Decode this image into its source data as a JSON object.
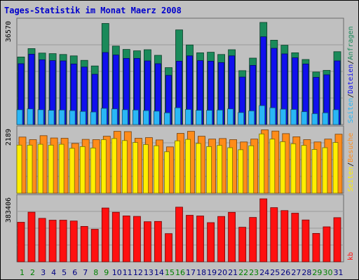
{
  "chart_data": {
    "type": "bar",
    "title": "Tages-Statistik im Monat Maerz 2008",
    "categories": [
      "1",
      "2",
      "3",
      "4",
      "5",
      "6",
      "7",
      "8",
      "9",
      "10",
      "11",
      "12",
      "13",
      "14",
      "15",
      "16",
      "17",
      "18",
      "19",
      "20",
      "21",
      "22",
      "23",
      "24",
      "25",
      "26",
      "27",
      "28",
      "29",
      "30",
      "31"
    ],
    "weekend_days": [
      "1",
      "2",
      "8",
      "9",
      "15",
      "16",
      "22",
      "23",
      "29",
      "30"
    ],
    "grid": true,
    "panels": [
      {
        "name": "requests",
        "max_label": "36570",
        "ylim": [
          0,
          36570
        ],
        "series": [
          {
            "name": "Anfragen",
            "color": "#1a8a5a",
            "values": [
              24200,
              27200,
              25600,
              25400,
              25100,
              24600,
              23000,
              21000,
              36200,
              28100,
              26900,
              26400,
              26800,
              24800,
              20400,
              33900,
              28500,
              25700,
              25900,
              25100,
              26800,
              19300,
              23800,
              36570,
              30200,
              28400,
              25700,
              23300,
              18800,
              19400,
              26100
            ]
          },
          {
            "name": "Dateien",
            "color": "#1010ee",
            "values": [
              21800,
              25200,
              23200,
              22900,
              22800,
              21700,
              20600,
              18000,
              25800,
              24900,
              23700,
              23700,
              22800,
              21800,
              17600,
              22700,
              24600,
              22900,
              22700,
              22200,
              24600,
              17000,
              21200,
              31400,
              27300,
              25300,
              23900,
              21700,
              16900,
              17800,
              22800
            ]
          },
          {
            "name": "Seiten",
            "color": "#29b6f6",
            "values": [
              5300,
              5600,
              5300,
              5100,
              5200,
              5000,
              4700,
              4500,
              5800,
              5600,
              5300,
              5200,
              5000,
              4800,
              4200,
              6000,
              5400,
              5100,
              5100,
              5200,
              5600,
              4300,
              4900,
              6800,
              6000,
              5500,
              5400,
              4600,
              3900,
              4200,
              5300
            ]
          }
        ]
      },
      {
        "name": "visits",
        "max_label": "2189",
        "ylim": [
          0,
          2189
        ],
        "series": [
          {
            "name": "Besuche",
            "color": "#ff8c1a",
            "values": [
              1950,
              1860,
              2000,
              1920,
              1910,
              1730,
              1870,
              1860,
              1980,
              2150,
              2140,
              1910,
              1930,
              1850,
              1610,
              2080,
              2150,
              1980,
              1880,
              1900,
              1860,
              1780,
              1880,
              2200,
              2160,
              2070,
              1960,
              1860,
              1780,
              1880,
              2050
            ]
          },
          {
            "name": "Seiten",
            "color": "#ffee00",
            "values": [
              1670,
              1670,
              1700,
              1670,
              1700,
              1560,
              1620,
              1570,
              1860,
              1900,
              1830,
              1760,
              1690,
              1650,
              1440,
              1820,
              1870,
              1730,
              1620,
              1660,
              1580,
              1510,
              1650,
              2060,
              1880,
              1790,
              1720,
              1660,
              1520,
              1580,
              1760
            ]
          }
        ]
      },
      {
        "name": "traffic",
        "max_label": "383406",
        "ylim": [
          0,
          383406
        ],
        "series": [
          {
            "name": "kb",
            "color": "#ff1010",
            "values": [
              240500,
              301900,
              264600,
              253500,
              253600,
              248500,
              215700,
              198300,
              327600,
              301800,
              279600,
              276400,
              244100,
              245600,
              171600,
              332800,
              283500,
              279000,
              238600,
              276000,
              301000,
              210300,
              269900,
              383406,
              329700,
              311900,
              296000,
              254800,
              173000,
              212900,
              268900
            ]
          }
        ]
      }
    ]
  }
}
